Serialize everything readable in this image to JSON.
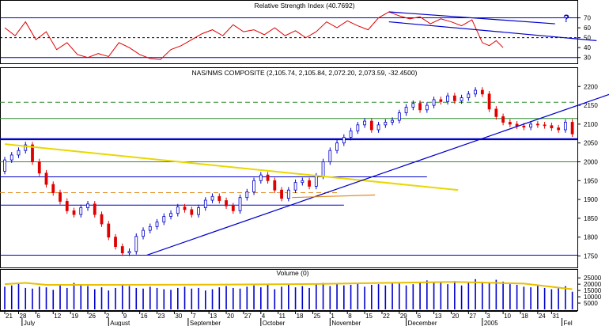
{
  "chart_data": [
    {
      "type": "line",
      "title": "Relative Strength Index (40.7692)",
      "ylim": [
        25,
        80
      ],
      "y_ticks": [
        "70",
        "60",
        "50",
        "40",
        "30"
      ],
      "reference_lines": [
        70,
        50,
        30
      ],
      "series": [
        {
          "x": [
            0,
            3,
            6,
            9,
            12,
            15,
            18,
            21,
            24,
            27,
            30,
            33,
            36,
            39,
            42,
            45,
            48,
            51,
            54,
            57,
            60,
            63,
            66,
            69,
            72,
            75,
            78,
            81,
            84,
            87,
            90,
            93,
            96,
            99,
            102,
            105,
            108,
            111,
            114,
            117,
            120,
            123,
            126,
            129,
            132,
            135,
            138,
            140,
            142,
            144
          ],
          "values": [
            60,
            52,
            66,
            48,
            56,
            38,
            45,
            33,
            30,
            34,
            31,
            45,
            40,
            33,
            29,
            28,
            38,
            42,
            48,
            54,
            58,
            52,
            63,
            56,
            58,
            53,
            60,
            52,
            57,
            50,
            56,
            66,
            60,
            67,
            62,
            58,
            70,
            76,
            72,
            69,
            71,
            64,
            69,
            66,
            62,
            68,
            45,
            42,
            47,
            40
          ]
        }
      ],
      "annotations": [
        "?"
      ],
      "trendlines": [
        {
          "x": [
            111,
            159
          ],
          "values": [
            76,
            64
          ]
        },
        {
          "x": [
            111,
            171
          ],
          "values": [
            66,
            47
          ]
        }
      ]
    },
    {
      "type": "candlestick",
      "title": "NAS/NMS COMPOSITE (2,105.74, 2,105.84, 2,072.20, 2,073.59, -32.4500)",
      "ylim": [
        1730,
        2230
      ],
      "y_ticks": [
        "2200",
        "2150",
        "2100",
        "2050",
        "2000",
        "1950",
        "1900",
        "1850",
        "1800",
        "1750"
      ],
      "horizontal_lines": [
        {
          "y": 2158,
          "style": "dashed",
          "color": "#2e8b2e"
        },
        {
          "y": 2115,
          "style": "solid",
          "color": "#2e8b2e"
        },
        {
          "y": 2060,
          "style": "solid-thick",
          "color": "#0000cc"
        },
        {
          "y": 2000,
          "style": "solid",
          "color": "#2e8b2e"
        },
        {
          "y": 1960,
          "style": "solid",
          "color": "#0000cc",
          "x_end": 122
        },
        {
          "y": 1918,
          "style": "dashed",
          "color": "#e08a1e",
          "x_end": 96
        },
        {
          "y": 1885,
          "style": "solid",
          "color": "#0000cc",
          "x_end": 98
        },
        {
          "y": 1752,
          "style": "solid",
          "color": "#0000cc"
        }
      ],
      "trendlines": [
        {
          "x": [
            0,
            131
          ],
          "values": [
            2047,
            1925
          ],
          "color": "#e8d800"
        },
        {
          "x": [
            41,
            175
          ],
          "values": [
            1752,
            2180
          ],
          "color": "#0000cc"
        },
        {
          "x": [
            83,
            107
          ],
          "values": [
            1905,
            1912
          ],
          "color": "#e08a1e"
        }
      ],
      "x": [
        0,
        2,
        4,
        6,
        8,
        10,
        12,
        14,
        16,
        18,
        20,
        22,
        24,
        26,
        28,
        30,
        32,
        34,
        36,
        38,
        40,
        42,
        44,
        46,
        48,
        50,
        52,
        54,
        56,
        58,
        60,
        62,
        64,
        66,
        68,
        70,
        72,
        74,
        76,
        78,
        80,
        82,
        84,
        86,
        88,
        90,
        92,
        94,
        96,
        98,
        100,
        102,
        104,
        106,
        108,
        110,
        112,
        114,
        116,
        118,
        120,
        122,
        124,
        126,
        128,
        130,
        132,
        134,
        136,
        138,
        140,
        142,
        144,
        146,
        148,
        150,
        152,
        154,
        156,
        158,
        160,
        162,
        164
      ],
      "open": [
        1975,
        2005,
        2018,
        2030,
        2045,
        2000,
        1970,
        1940,
        1918,
        1895,
        1870,
        1860,
        1878,
        1888,
        1860,
        1835,
        1800,
        1775,
        1758,
        1762,
        1802,
        1818,
        1828,
        1840,
        1855,
        1863,
        1880,
        1873,
        1860,
        1878,
        1898,
        1908,
        1897,
        1883,
        1870,
        1905,
        1920,
        1950,
        1965,
        1950,
        1925,
        1903,
        1925,
        1945,
        1950,
        1935,
        1962,
        2000,
        2030,
        2050,
        2065,
        2082,
        2098,
        2108,
        2085,
        2098,
        2105,
        2110,
        2130,
        2145,
        2155,
        2138,
        2150,
        2165,
        2160,
        2175,
        2162,
        2170,
        2180,
        2190,
        2180,
        2140,
        2120,
        2105,
        2100,
        2095,
        2092,
        2100,
        2098,
        2096,
        2090,
        2085,
        2105
      ],
      "close": [
        2005,
        2018,
        2030,
        2045,
        2000,
        1970,
        1940,
        1918,
        1895,
        1870,
        1860,
        1878,
        1888,
        1860,
        1835,
        1800,
        1775,
        1758,
        1762,
        1802,
        1818,
        1828,
        1840,
        1855,
        1863,
        1880,
        1873,
        1860,
        1878,
        1898,
        1908,
        1897,
        1883,
        1870,
        1905,
        1920,
        1950,
        1965,
        1950,
        1925,
        1903,
        1925,
        1945,
        1950,
        1935,
        1962,
        2000,
        2030,
        2050,
        2065,
        2082,
        2098,
        2108,
        2085,
        2098,
        2105,
        2110,
        2130,
        2145,
        2155,
        2138,
        2150,
        2165,
        2160,
        2175,
        2162,
        2170,
        2180,
        2190,
        2180,
        2140,
        2120,
        2105,
        2100,
        2095,
        2092,
        2100,
        2098,
        2096,
        2090,
        2085,
        2105,
        2074
      ]
    },
    {
      "type": "bar",
      "title": "Volume (0)",
      "ylim": [
        0,
        27000
      ],
      "y_ticks": [
        "25000",
        "20000",
        "15000",
        "10000",
        "5000"
      ],
      "x": [
        0,
        2,
        4,
        6,
        8,
        10,
        12,
        14,
        16,
        18,
        20,
        22,
        24,
        26,
        28,
        30,
        32,
        34,
        36,
        38,
        40,
        42,
        44,
        46,
        48,
        50,
        52,
        54,
        56,
        58,
        60,
        62,
        64,
        66,
        68,
        70,
        72,
        74,
        76,
        78,
        80,
        82,
        84,
        86,
        88,
        90,
        92,
        94,
        96,
        98,
        100,
        102,
        104,
        106,
        108,
        110,
        112,
        114,
        116,
        118,
        120,
        122,
        124,
        126,
        128,
        130,
        132,
        134,
        136,
        138,
        140,
        142,
        144,
        146,
        148,
        150,
        152,
        154,
        156,
        158,
        160,
        162,
        164
      ],
      "values": [
        18000,
        19000,
        21000,
        17000,
        16500,
        18000,
        17500,
        15500,
        19000,
        17000,
        21000,
        20000,
        18500,
        16000,
        17500,
        15000,
        17000,
        19500,
        18500,
        17000,
        16500,
        18000,
        17000,
        16000,
        15500,
        17000,
        18000,
        16500,
        17000,
        15000,
        16000,
        17500,
        18500,
        17000,
        16500,
        18000,
        19000,
        17500,
        20000,
        16000,
        18000,
        19500,
        17500,
        18500,
        17000,
        20000,
        21000,
        18500,
        20000,
        19000,
        19500,
        21000,
        18000,
        19500,
        20000,
        19000,
        21500,
        20500,
        19000,
        20000,
        22000,
        23000,
        21000,
        21500,
        20000,
        22500,
        19000,
        21000,
        24000,
        22000,
        21000,
        23500,
        22000,
        20000,
        19500,
        18000,
        17500,
        19000,
        17000,
        16000,
        17000,
        18500,
        14000
      ],
      "average": {
        "x": [
          0,
          6,
          12,
          30,
          60,
          90,
          110,
          130,
          150,
          164
        ],
        "values": [
          20000,
          21000,
          19500,
          19500,
          19600,
          20200,
          21000,
          21800,
          20500,
          16000
        ]
      }
    }
  ],
  "x_axis": {
    "day_ticks": [
      {
        "x": 0,
        "label": "21"
      },
      {
        "x": 4,
        "label": "28"
      },
      {
        "x": 9,
        "label": "6"
      },
      {
        "x": 14,
        "label": "12"
      },
      {
        "x": 19,
        "label": "19"
      },
      {
        "x": 24,
        "label": "26"
      },
      {
        "x": 29,
        "label": "2"
      },
      {
        "x": 34,
        "label": "9"
      },
      {
        "x": 39,
        "label": "16"
      },
      {
        "x": 44,
        "label": "23"
      },
      {
        "x": 49,
        "label": "30"
      },
      {
        "x": 54,
        "label": "7"
      },
      {
        "x": 59,
        "label": "13"
      },
      {
        "x": 64,
        "label": "20"
      },
      {
        "x": 69,
        "label": "27"
      },
      {
        "x": 74,
        "label": "4"
      },
      {
        "x": 79,
        "label": "11"
      },
      {
        "x": 84,
        "label": "18"
      },
      {
        "x": 89,
        "label": "25"
      },
      {
        "x": 94,
        "label": "1"
      },
      {
        "x": 99,
        "label": "8"
      },
      {
        "x": 104,
        "label": "15"
      },
      {
        "x": 109,
        "label": "22"
      },
      {
        "x": 114,
        "label": "29"
      },
      {
        "x": 119,
        "label": "6"
      },
      {
        "x": 124,
        "label": "13"
      },
      {
        "x": 129,
        "label": "20"
      },
      {
        "x": 134,
        "label": "27"
      },
      {
        "x": 139,
        "label": "3"
      },
      {
        "x": 144,
        "label": "10"
      },
      {
        "x": 149,
        "label": "18"
      },
      {
        "x": 154,
        "label": "24"
      },
      {
        "x": 158,
        "label": "31"
      }
    ],
    "months": [
      {
        "x": 5,
        "label": "July"
      },
      {
        "x": 30,
        "label": "August"
      },
      {
        "x": 53,
        "label": "September"
      },
      {
        "x": 74,
        "label": "October"
      },
      {
        "x": 94,
        "label": "November"
      },
      {
        "x": 116,
        "label": "December"
      },
      {
        "x": 138,
        "label": "2005"
      },
      {
        "x": 161,
        "label": "Fel"
      }
    ]
  }
}
